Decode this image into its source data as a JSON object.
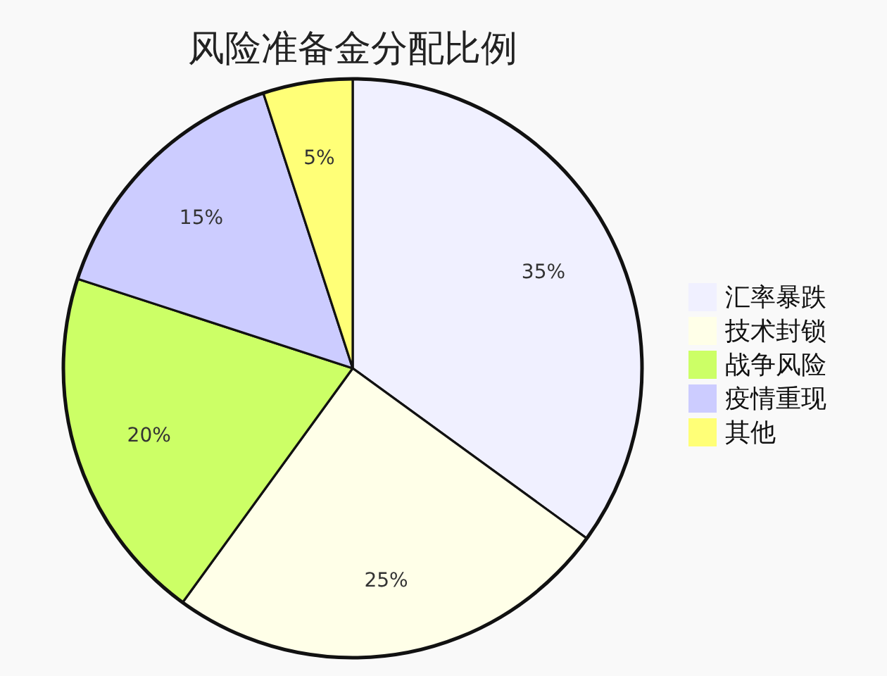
{
  "chart_data": {
    "type": "pie",
    "title": "风险准备金分配比例",
    "categories": [
      "汇率暴跌",
      "技术封锁",
      "战争风险",
      "疫情重现",
      "其他"
    ],
    "values": [
      35,
      25,
      20,
      15,
      5
    ],
    "colors": [
      "#f0f0ff",
      "#ffffe8",
      "#ccff66",
      "#ccccff",
      "#ffff77"
    ],
    "value_labels": [
      "35%",
      "25%",
      "20%",
      "15%",
      "5%"
    ],
    "legend": "right"
  }
}
